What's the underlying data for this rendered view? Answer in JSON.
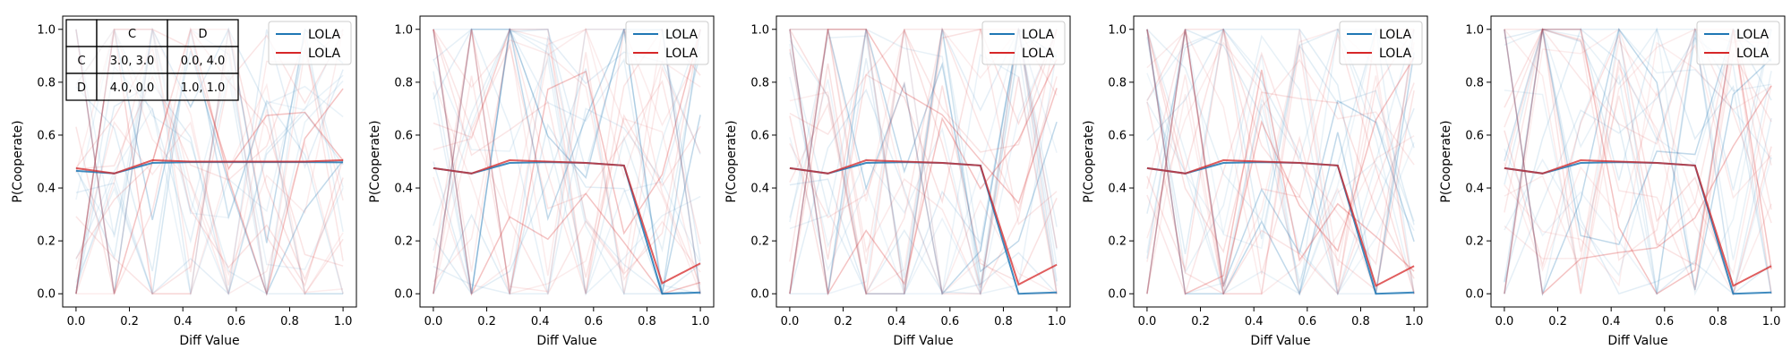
{
  "chart_data": [
    {
      "type": "line",
      "xlabel": "Diff Value",
      "ylabel": "P(Cooperate)",
      "xlim": [
        -0.05,
        1.05
      ],
      "ylim": [
        -0.05,
        1.05
      ],
      "x_ticks": [
        "0.0",
        "0.2",
        "0.4",
        "0.6",
        "0.8",
        "1.0"
      ],
      "y_ticks": [
        "0.0",
        "0.2",
        "0.4",
        "0.6",
        "0.8",
        "1.0"
      ],
      "grid": false,
      "legend_position": "top-right",
      "x": [
        0.0,
        0.143,
        0.286,
        0.429,
        0.571,
        0.714,
        0.857,
        1.0
      ],
      "series": [
        {
          "name": "LOLA",
          "color": "#1f77b4",
          "values": [
            0.465,
            0.455,
            0.495,
            0.498,
            0.498,
            0.498,
            0.498,
            0.497
          ]
        },
        {
          "name": "LOLA",
          "color": "#d62728",
          "values": [
            0.475,
            0.455,
            0.505,
            0.5,
            0.5,
            0.5,
            0.5,
            0.505
          ]
        }
      ],
      "payoff_table": {
        "col_headers": [
          "C",
          "D"
        ],
        "rows": [
          {
            "label": "C",
            "cells": [
              "3.0, 3.0",
              "0.0, 4.0"
            ]
          },
          {
            "label": "D",
            "cells": [
              "4.0, 0.0",
              "1.0, 1.0"
            ]
          }
        ]
      }
    },
    {
      "type": "line",
      "xlabel": "Diff Value",
      "ylabel": "P(Cooperate)",
      "xlim": [
        -0.05,
        1.05
      ],
      "ylim": [
        -0.05,
        1.05
      ],
      "x_ticks": [
        "0.0",
        "0.2",
        "0.4",
        "0.6",
        "0.8",
        "1.0"
      ],
      "y_ticks": [
        "0.0",
        "0.2",
        "0.4",
        "0.6",
        "0.8",
        "1.0"
      ],
      "grid": false,
      "legend_position": "top-right",
      "x": [
        0.0,
        0.143,
        0.286,
        0.429,
        0.571,
        0.714,
        0.857,
        1.0
      ],
      "series": [
        {
          "name": "LOLA",
          "color": "#1f77b4",
          "values": [
            0.475,
            0.455,
            0.495,
            0.498,
            0.495,
            0.485,
            0.0,
            0.005
          ]
        },
        {
          "name": "LOLA",
          "color": "#d62728",
          "values": [
            0.475,
            0.455,
            0.505,
            0.5,
            0.495,
            0.485,
            0.04,
            0.115
          ]
        }
      ]
    },
    {
      "type": "line",
      "xlabel": "Diff Value",
      "ylabel": "P(Cooperate)",
      "xlim": [
        -0.05,
        1.05
      ],
      "ylim": [
        -0.05,
        1.05
      ],
      "x_ticks": [
        "0.0",
        "0.2",
        "0.4",
        "0.6",
        "0.8",
        "1.0"
      ],
      "y_ticks": [
        "0.0",
        "0.2",
        "0.4",
        "0.6",
        "0.8",
        "1.0"
      ],
      "grid": false,
      "legend_position": "top-right",
      "x": [
        0.0,
        0.143,
        0.286,
        0.429,
        0.571,
        0.714,
        0.857,
        1.0
      ],
      "series": [
        {
          "name": "LOLA",
          "color": "#1f77b4",
          "values": [
            0.475,
            0.455,
            0.495,
            0.498,
            0.495,
            0.485,
            0.0,
            0.005
          ]
        },
        {
          "name": "LOLA",
          "color": "#d62728",
          "values": [
            0.475,
            0.455,
            0.505,
            0.5,
            0.495,
            0.485,
            0.035,
            0.11
          ]
        }
      ]
    },
    {
      "type": "line",
      "xlabel": "Diff Value",
      "ylabel": "P(Cooperate)",
      "xlim": [
        -0.05,
        1.05
      ],
      "ylim": [
        -0.05,
        1.05
      ],
      "x_ticks": [
        "0.0",
        "0.2",
        "0.4",
        "0.6",
        "0.8",
        "1.0"
      ],
      "y_ticks": [
        "0.0",
        "0.2",
        "0.4",
        "0.6",
        "0.8",
        "1.0"
      ],
      "grid": false,
      "legend_position": "top-right",
      "x": [
        0.0,
        0.143,
        0.286,
        0.429,
        0.571,
        0.714,
        0.857,
        1.0
      ],
      "series": [
        {
          "name": "LOLA",
          "color": "#1f77b4",
          "values": [
            0.475,
            0.455,
            0.495,
            0.498,
            0.495,
            0.485,
            0.0,
            0.005
          ]
        },
        {
          "name": "LOLA",
          "color": "#d62728",
          "values": [
            0.475,
            0.455,
            0.505,
            0.5,
            0.495,
            0.485,
            0.03,
            0.105
          ]
        }
      ]
    },
    {
      "type": "line",
      "xlabel": "Diff Value",
      "ylabel": "P(Cooperate)",
      "xlim": [
        -0.05,
        1.05
      ],
      "ylim": [
        -0.05,
        1.05
      ],
      "x_ticks": [
        "0.0",
        "0.2",
        "0.4",
        "0.6",
        "0.8",
        "1.0"
      ],
      "y_ticks": [
        "0.0",
        "0.2",
        "0.4",
        "0.6",
        "0.8",
        "1.0"
      ],
      "grid": false,
      "legend_position": "top-right",
      "x": [
        0.0,
        0.143,
        0.286,
        0.429,
        0.571,
        0.714,
        0.857,
        1.0
      ],
      "series": [
        {
          "name": "LOLA",
          "color": "#1f77b4",
          "values": [
            0.475,
            0.455,
            0.495,
            0.498,
            0.495,
            0.485,
            0.0,
            0.005
          ]
        },
        {
          "name": "LOLA",
          "color": "#d62728",
          "values": [
            0.475,
            0.455,
            0.505,
            0.5,
            0.495,
            0.485,
            0.03,
            0.105
          ]
        }
      ]
    }
  ]
}
